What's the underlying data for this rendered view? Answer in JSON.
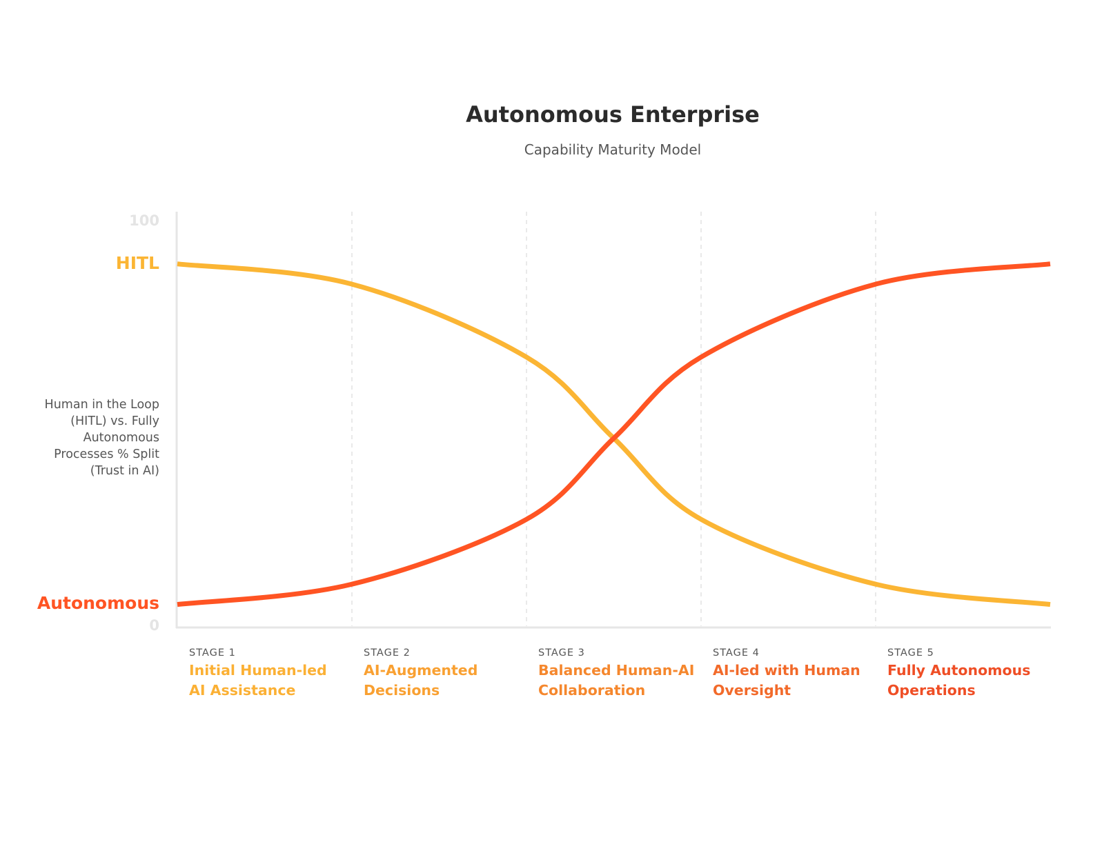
{
  "chart_data": {
    "type": "line",
    "title": "Autonomous Enterprise",
    "subtitle": "Capability Maturity Model",
    "ylabel": [
      "Human in the Loop",
      "(HITL) vs. Fully",
      "Autonomous",
      "Processes % Split",
      "(Trust in AI)"
    ],
    "ylim": [
      0,
      100
    ],
    "yticks": [
      "100",
      "0"
    ],
    "grid": "vertical dashed at stage boundaries",
    "stages": [
      {
        "num": "STAGE 1",
        "name": [
          "Initial Human-led",
          "AI Assistance"
        ],
        "color": "#FBB034"
      },
      {
        "num": "STAGE 2",
        "name": [
          "AI-Augmented",
          "Decisions"
        ],
        "color": "#F9A031"
      },
      {
        "num": "STAGE 3",
        "name": [
          "Balanced Human-AI",
          "Collaboration"
        ],
        "color": "#F5872D"
      },
      {
        "num": "STAGE 4",
        "name": [
          "AI-led with Human",
          "Oversight"
        ],
        "color": "#F26A2A"
      },
      {
        "num": "STAGE 5",
        "name": [
          "Fully Autonomous",
          "Operations"
        ],
        "color": "#EF4E25"
      }
    ],
    "x": [
      0,
      1,
      2,
      2.5,
      3,
      4,
      5
    ],
    "series": [
      {
        "name": "HITL",
        "color": "#FBB534",
        "values": [
          89,
          84,
          66,
          46,
          26,
          10,
          5
        ]
      },
      {
        "name": "Autonomous",
        "color": "#FF5423",
        "values": [
          5,
          10,
          26,
          46,
          66,
          84,
          89
        ]
      }
    ]
  }
}
